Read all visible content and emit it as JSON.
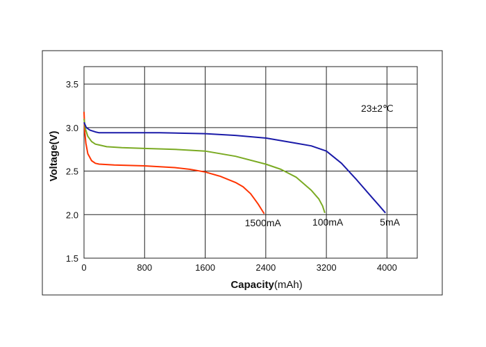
{
  "chart_data": {
    "type": "line",
    "title": "",
    "xlabel_bold": "Capacity",
    "xlabel_unit": "(mAh)",
    "ylabel": "Voltage(V)",
    "xlim": [
      0,
      4400
    ],
    "ylim": [
      1.5,
      3.7
    ],
    "xticks": [
      0,
      800,
      1600,
      2400,
      3200,
      4000
    ],
    "yticks": [
      1.5,
      2.0,
      2.5,
      3.0,
      3.5
    ],
    "xtick_labels": [
      "0",
      "800",
      "1600",
      "2400",
      "3200",
      "4000"
    ],
    "ytick_labels": [
      "1.5",
      "2.0",
      "2.5",
      "3.0",
      "3.5"
    ],
    "grid": true,
    "annotation": "23±2℃",
    "series": [
      {
        "name": "1500mA",
        "color": "#ff3300",
        "x": [
          0,
          10,
          25,
          50,
          100,
          150,
          200,
          400,
          800,
          1200,
          1400,
          1600,
          1800,
          2000,
          2100,
          2200,
          2250,
          2300,
          2350,
          2380
        ],
        "y": [
          3.18,
          2.95,
          2.82,
          2.7,
          2.62,
          2.59,
          2.58,
          2.57,
          2.56,
          2.54,
          2.52,
          2.49,
          2.44,
          2.37,
          2.32,
          2.24,
          2.18,
          2.12,
          2.05,
          2.01
        ]
      },
      {
        "name": "100mA",
        "color": "#7aaa22",
        "x": [
          0,
          20,
          50,
          100,
          150,
          200,
          300,
          500,
          800,
          1200,
          1600,
          2000,
          2400,
          2600,
          2800,
          3000,
          3100,
          3150,
          3180
        ],
        "y": [
          3.1,
          2.98,
          2.9,
          2.84,
          2.81,
          2.8,
          2.78,
          2.77,
          2.76,
          2.75,
          2.73,
          2.67,
          2.58,
          2.52,
          2.43,
          2.28,
          2.18,
          2.1,
          2.02
        ]
      },
      {
        "name": "5mA",
        "color": "#1a1aa8",
        "x": [
          0,
          30,
          80,
          150,
          200,
          300,
          500,
          1000,
          1600,
          2000,
          2400,
          2800,
          3000,
          3200,
          3400,
          3600,
          3800,
          3900,
          3980
        ],
        "y": [
          3.06,
          3.0,
          2.97,
          2.95,
          2.94,
          2.94,
          2.94,
          2.94,
          2.93,
          2.91,
          2.88,
          2.82,
          2.79,
          2.73,
          2.59,
          2.4,
          2.2,
          2.1,
          2.02
        ]
      }
    ]
  }
}
